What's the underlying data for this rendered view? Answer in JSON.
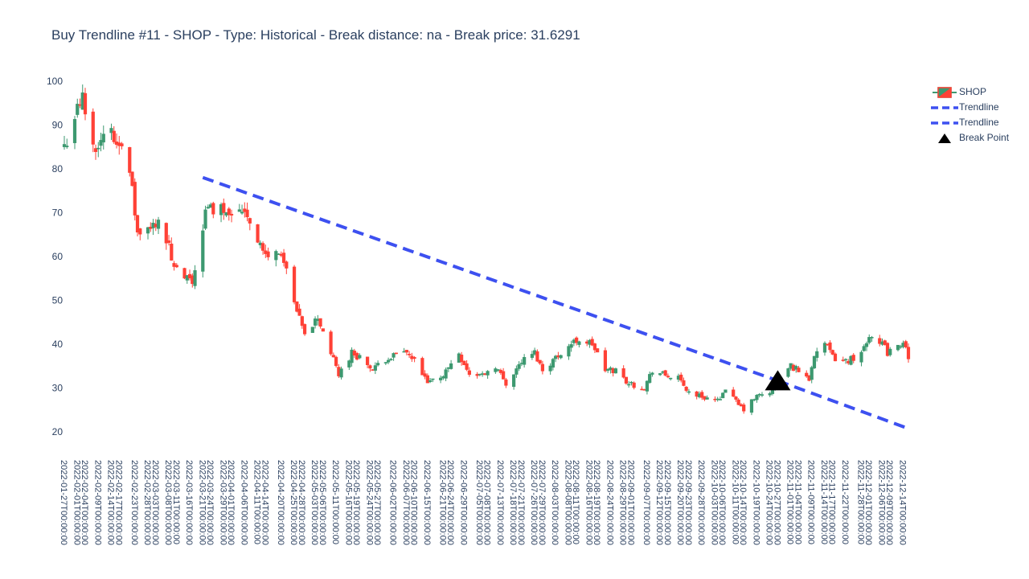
{
  "chart_data": {
    "type": "candlestick",
    "title": "Buy Trendline #11 - SHOP - Type: Historical - Break distance: na - Break price: 31.6291",
    "xlabel": "",
    "ylabel": "",
    "ylim": [
      15,
      102
    ],
    "y_ticks": [
      20,
      30,
      40,
      50,
      60,
      70,
      80,
      90,
      100
    ],
    "grid": false,
    "legend_position": "top-right",
    "colors": {
      "up": "#3d9970",
      "down": "#ff4136",
      "trendline": "#3d50f0",
      "break": "#000000"
    },
    "x_start": "2022-01-27",
    "x_end": "2022-12-16",
    "x_tick_labels": [
      "2022-01-27T00:00:00",
      "2022-02-01T00:00:00",
      "2022-02-04T00:00:00",
      "2022-02-09T00:00:00",
      "2022-02-14T00:00:00",
      "2022-02-17T00:00:00",
      "2022-02-23T00:00:00",
      "2022-02-28T00:00:00",
      "2022-03-03T00:00:00",
      "2022-03-08T00:00:00",
      "2022-03-11T00:00:00",
      "2022-03-16T00:00:00",
      "2022-03-21T00:00:00",
      "2022-03-24T00:00:00",
      "2022-03-29T00:00:00",
      "2022-04-01T00:00:00",
      "2022-04-06T00:00:00",
      "2022-04-11T00:00:00",
      "2022-04-14T00:00:00",
      "2022-04-20T00:00:00",
      "2022-04-25T00:00:00",
      "2022-04-28T00:00:00",
      "2022-05-03T00:00:00",
      "2022-05-06T00:00:00",
      "2022-05-11T00:00:00",
      "2022-05-16T00:00:00",
      "2022-05-19T00:00:00",
      "2022-05-24T00:00:00",
      "2022-05-27T00:00:00",
      "2022-06-02T00:00:00",
      "2022-06-07T00:00:00",
      "2022-06-10T00:00:00",
      "2022-06-15T00:00:00",
      "2022-06-21T00:00:00",
      "2022-06-24T00:00:00",
      "2022-06-29T00:00:00",
      "2022-07-05T00:00:00",
      "2022-07-08T00:00:00",
      "2022-07-13T00:00:00",
      "2022-07-18T00:00:00",
      "2022-07-21T00:00:00",
      "2022-07-26T00:00:00",
      "2022-07-29T00:00:00",
      "2022-08-03T00:00:00",
      "2022-08-08T00:00:00",
      "2022-08-11T00:00:00",
      "2022-08-16T00:00:00",
      "2022-08-19T00:00:00",
      "2022-08-24T00:00:00",
      "2022-08-29T00:00:00",
      "2022-09-01T00:00:00",
      "2022-09-07T00:00:00",
      "2022-09-12T00:00:00",
      "2022-09-15T00:00:00",
      "2022-09-20T00:00:00",
      "2022-09-23T00:00:00",
      "2022-09-28T00:00:00",
      "2022-10-03T00:00:00",
      "2022-10-06T00:00:00",
      "2022-10-11T00:00:00",
      "2022-10-14T00:00:00",
      "2022-10-19T00:00:00",
      "2022-10-24T00:00:00",
      "2022-10-27T00:00:00",
      "2022-11-01T00:00:00",
      "2022-11-04T00:00:00",
      "2022-11-09T00:00:00",
      "2022-11-14T00:00:00",
      "2022-11-17T00:00:00",
      "2022-11-22T00:00:00",
      "2022-11-28T00:00:00",
      "2022-12-01T00:00:00",
      "2022-12-06T00:00:00",
      "2022-12-09T00:00:00",
      "2022-12-14T00:00:00"
    ],
    "price_anchors": [
      [
        "2022-01-27",
        85
      ],
      [
        "2022-01-31",
        92
      ],
      [
        "2022-02-03",
        96
      ],
      [
        "2022-02-07",
        85
      ],
      [
        "2022-02-10",
        87
      ],
      [
        "2022-02-14",
        88
      ],
      [
        "2022-02-16",
        86
      ],
      [
        "2022-02-18",
        87
      ],
      [
        "2022-02-22",
        75
      ],
      [
        "2022-02-24",
        65
      ],
      [
        "2022-03-01",
        66
      ],
      [
        "2022-03-04",
        69
      ],
      [
        "2022-03-08",
        62
      ],
      [
        "2022-03-10",
        57
      ],
      [
        "2022-03-14",
        55
      ],
      [
        "2022-03-17",
        54
      ],
      [
        "2022-03-22",
        70
      ],
      [
        "2022-03-24",
        71
      ],
      [
        "2022-03-30",
        71
      ],
      [
        "2022-04-04",
        70
      ],
      [
        "2022-04-06",
        71
      ],
      [
        "2022-04-11",
        64
      ],
      [
        "2022-04-14",
        60
      ],
      [
        "2022-04-20",
        61
      ],
      [
        "2022-04-25",
        49
      ],
      [
        "2022-04-29",
        42
      ],
      [
        "2022-05-04",
        46
      ],
      [
        "2022-05-09",
        38
      ],
      [
        "2022-05-12",
        33
      ],
      [
        "2022-05-17",
        38
      ],
      [
        "2022-05-20",
        37
      ],
      [
        "2022-05-25",
        34
      ],
      [
        "2022-05-31",
        37
      ],
      [
        "2022-06-07",
        38
      ],
      [
        "2022-06-10",
        36
      ],
      [
        "2022-06-15",
        31
      ],
      [
        "2022-06-21",
        33
      ],
      [
        "2022-06-27",
        38
      ],
      [
        "2022-07-01",
        33
      ],
      [
        "2022-07-06",
        33
      ],
      [
        "2022-07-11",
        35
      ],
      [
        "2022-07-15",
        31
      ],
      [
        "2022-07-21",
        36
      ],
      [
        "2022-07-26",
        38
      ],
      [
        "2022-07-29",
        34
      ],
      [
        "2022-08-05",
        38
      ],
      [
        "2022-08-09",
        40
      ],
      [
        "2022-08-12",
        41
      ],
      [
        "2022-08-17",
        40
      ],
      [
        "2022-08-22",
        34
      ],
      [
        "2022-08-26",
        34
      ],
      [
        "2022-08-31",
        31
      ],
      [
        "2022-09-06",
        30
      ],
      [
        "2022-09-09",
        34
      ],
      [
        "2022-09-13",
        33
      ],
      [
        "2022-09-19",
        32
      ],
      [
        "2022-09-23",
        29
      ],
      [
        "2022-09-28",
        28
      ],
      [
        "2022-10-04",
        27
      ],
      [
        "2022-10-07",
        30
      ],
      [
        "2022-10-12",
        26
      ],
      [
        "2022-10-14",
        25
      ],
      [
        "2022-10-19",
        28
      ],
      [
        "2022-10-24",
        29
      ],
      [
        "2022-10-28",
        32
      ],
      [
        "2022-11-01",
        35
      ],
      [
        "2022-11-04",
        34
      ],
      [
        "2022-11-08",
        32
      ],
      [
        "2022-11-10",
        38
      ],
      [
        "2022-11-14",
        40
      ],
      [
        "2022-11-17",
        37
      ],
      [
        "2022-11-22",
        36
      ],
      [
        "2022-11-28",
        38
      ],
      [
        "2022-12-01",
        42
      ],
      [
        "2022-12-05",
        41
      ],
      [
        "2022-12-08",
        38
      ],
      [
        "2022-12-12",
        39
      ],
      [
        "2022-12-14",
        41
      ],
      [
        "2022-12-16",
        36
      ]
    ],
    "series": [
      {
        "name": "SHOP"
      },
      {
        "name": "Trendline",
        "x": [
          "2022-03-21",
          "2022-10-27"
        ],
        "y": [
          78,
          31.6291
        ]
      },
      {
        "name": "Trendline",
        "x": [
          "2022-10-27",
          "2022-12-16"
        ],
        "y": [
          31.6291,
          20.7
        ]
      },
      {
        "name": "Break Point",
        "x": [
          "2022-10-27"
        ],
        "y": [
          31.6291
        ]
      }
    ]
  }
}
